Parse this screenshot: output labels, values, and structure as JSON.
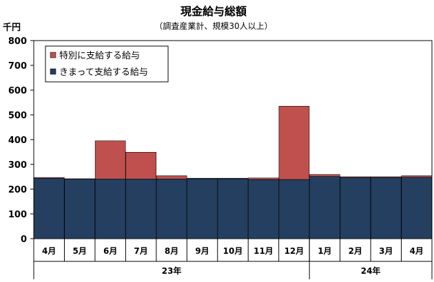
{
  "chart_data": {
    "type": "bar",
    "stacked": true,
    "title": "現金給与総額",
    "subtitle": "（調査産業計、規模30人以上）",
    "ylabel": "千円",
    "ylim": [
      0,
      800
    ],
    "yticks": [
      0,
      100,
      200,
      300,
      400,
      500,
      600,
      700,
      800
    ],
    "categories": [
      "4月",
      "5月",
      "6月",
      "7月",
      "8月",
      "9月",
      "10月",
      "11月",
      "12月",
      "1月",
      "2月",
      "3月",
      "4月"
    ],
    "groups": [
      {
        "label": "23年",
        "count": 9
      },
      {
        "label": "24年",
        "count": 4
      }
    ],
    "legend_position": "top-left",
    "series": [
      {
        "name": "きまって支給する給与",
        "color": "#243f60",
        "values": [
          244,
          240,
          241,
          241,
          241,
          242,
          242,
          239,
          239,
          251,
          247,
          247,
          248
        ]
      },
      {
        "name": "特別に支給する給与",
        "color": "#c0504d",
        "values": [
          3,
          2,
          154,
          108,
          13,
          2,
          2,
          6,
          296,
          8,
          3,
          3,
          6
        ]
      }
    ]
  }
}
